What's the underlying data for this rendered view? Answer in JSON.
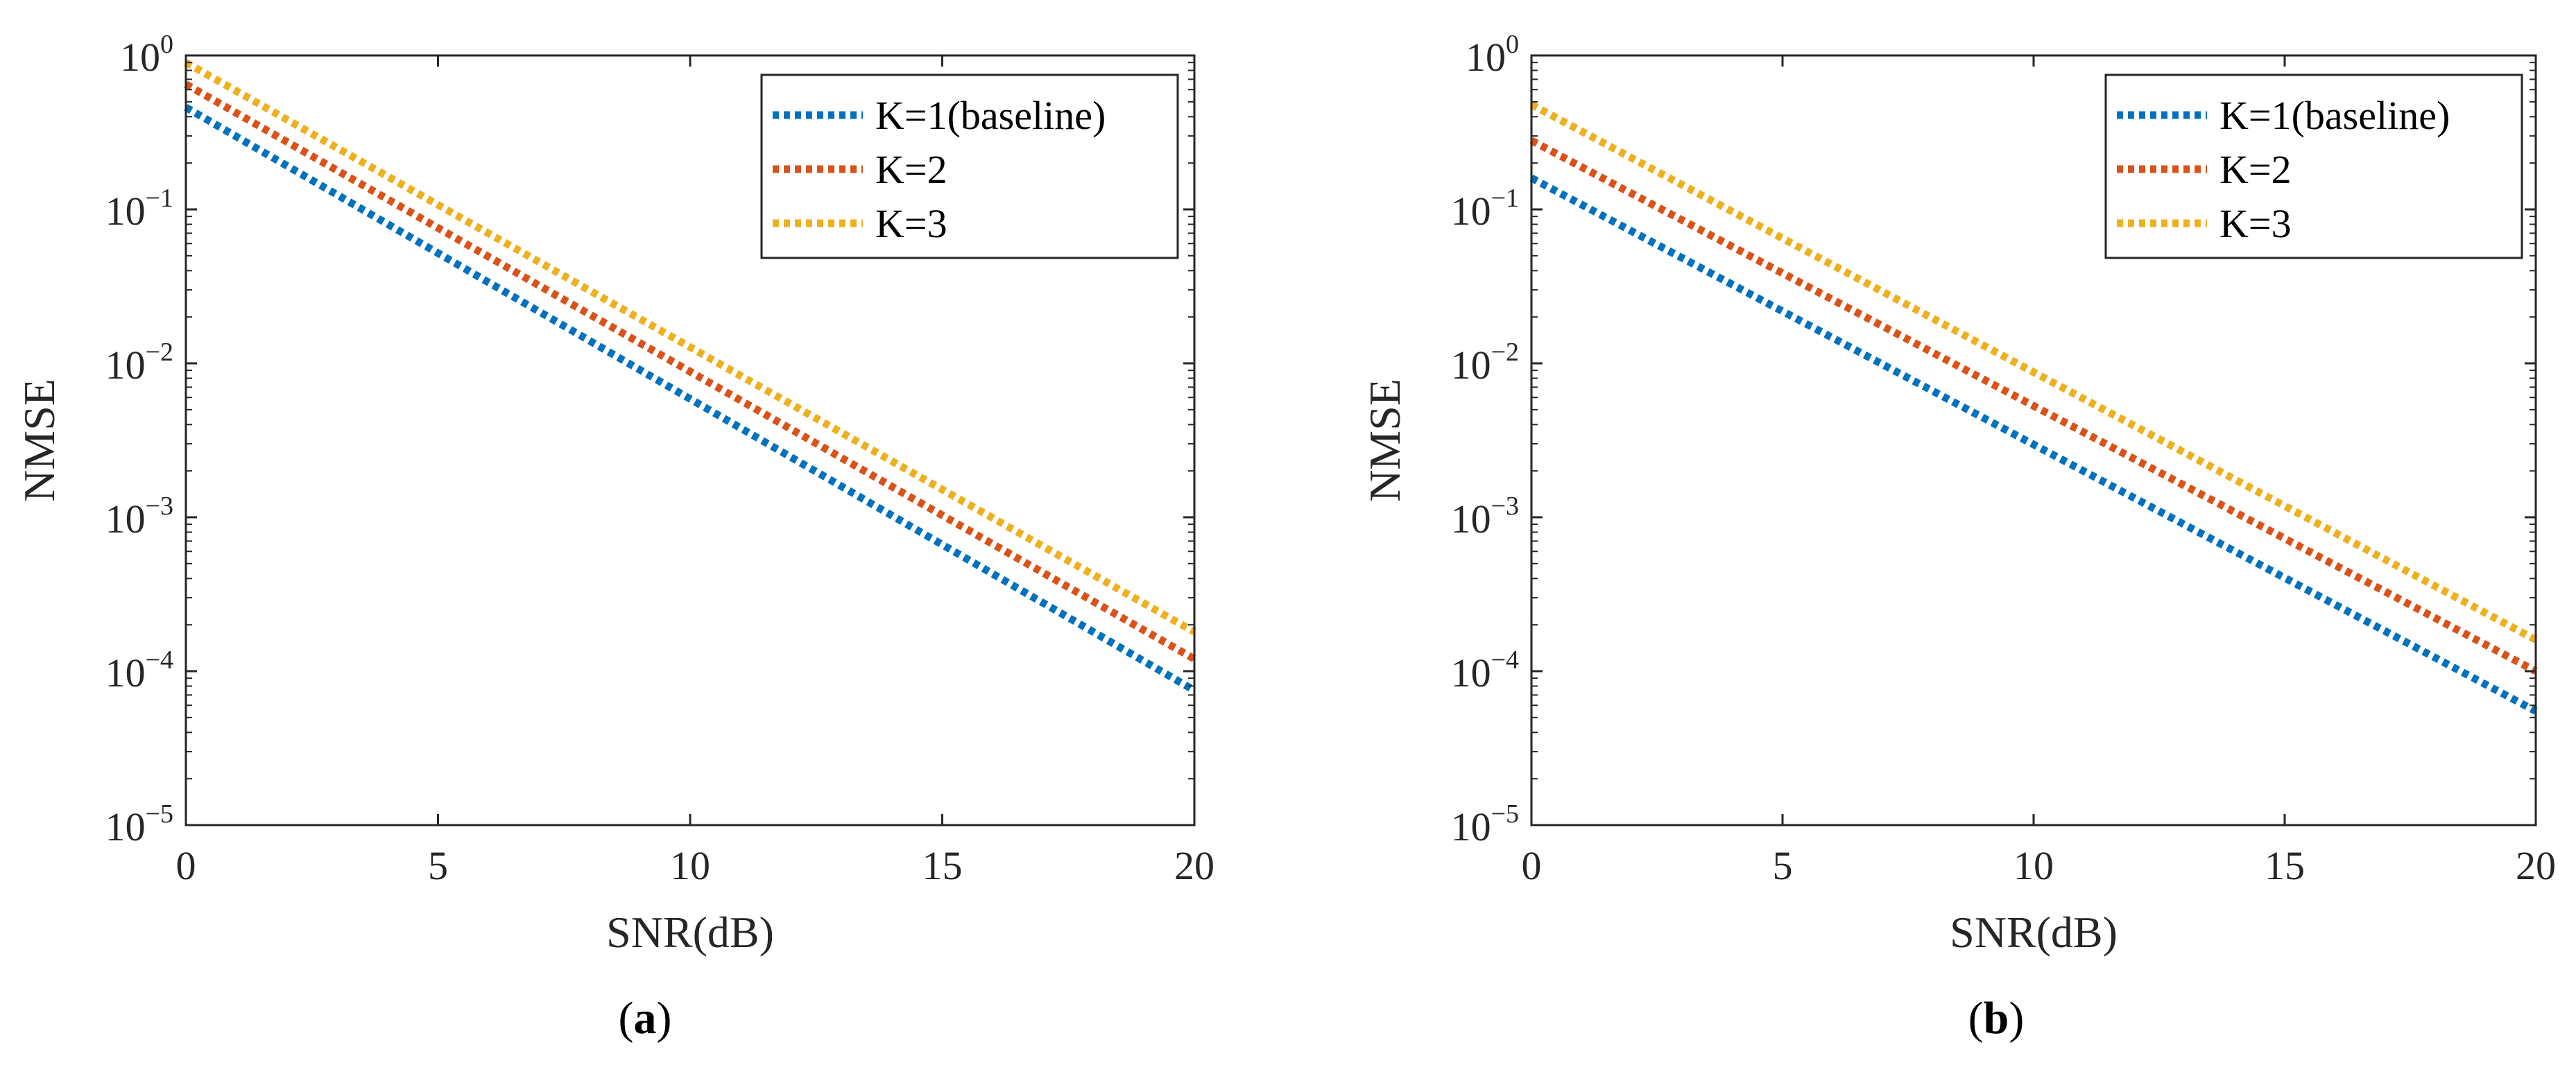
{
  "chart_data": [
    {
      "type": "line",
      "panel": "a",
      "caption_letter": "a",
      "xlabel": "SNR(dB)",
      "ylabel": "NMSE",
      "xlim": [
        0,
        20
      ],
      "ylim_exp": [
        -5,
        0
      ],
      "yscale": "log",
      "xticks": [
        "0",
        "5",
        "10",
        "15",
        "20"
      ],
      "yticks": [
        {
          "base": "10",
          "exp": "0"
        },
        {
          "base": "10",
          "exp": "−1"
        },
        {
          "base": "10",
          "exp": "−2"
        },
        {
          "base": "10",
          "exp": "−3"
        },
        {
          "base": "10",
          "exp": "−4"
        },
        {
          "base": "10",
          "exp": "−5"
        }
      ],
      "legend_position": "top-right",
      "series": [
        {
          "name": "K=1(baseline)",
          "color": "#0072BD",
          "x": [
            0,
            20
          ],
          "y": [
            0.46,
            7.5e-05
          ]
        },
        {
          "name": "K=2",
          "color": "#D95319",
          "x": [
            0,
            20
          ],
          "y": [
            0.65,
            0.00012
          ]
        },
        {
          "name": "K=3",
          "color": "#EDB120",
          "x": [
            0,
            20
          ],
          "y": [
            0.9,
            0.00018
          ]
        }
      ]
    },
    {
      "type": "line",
      "panel": "b",
      "caption_letter": "b",
      "xlabel": "SNR(dB)",
      "ylabel": "NMSE",
      "xlim": [
        0,
        20
      ],
      "ylim_exp": [
        -5,
        0
      ],
      "yscale": "log",
      "xticks": [
        "0",
        "5",
        "10",
        "15",
        "20"
      ],
      "yticks": [
        {
          "base": "10",
          "exp": "0"
        },
        {
          "base": "10",
          "exp": "−1"
        },
        {
          "base": "10",
          "exp": "−2"
        },
        {
          "base": "10",
          "exp": "−3"
        },
        {
          "base": "10",
          "exp": "−4"
        },
        {
          "base": "10",
          "exp": "−5"
        }
      ],
      "legend_position": "top-right",
      "series": [
        {
          "name": "K=1(baseline)",
          "color": "#0072BD",
          "x": [
            0,
            20
          ],
          "y": [
            0.16,
            5.5e-05
          ]
        },
        {
          "name": "K=2",
          "color": "#D95319",
          "x": [
            0,
            20
          ],
          "y": [
            0.28,
            0.0001
          ]
        },
        {
          "name": "K=3",
          "color": "#EDB120",
          "x": [
            0,
            20
          ],
          "y": [
            0.48,
            0.00016
          ]
        }
      ]
    }
  ]
}
